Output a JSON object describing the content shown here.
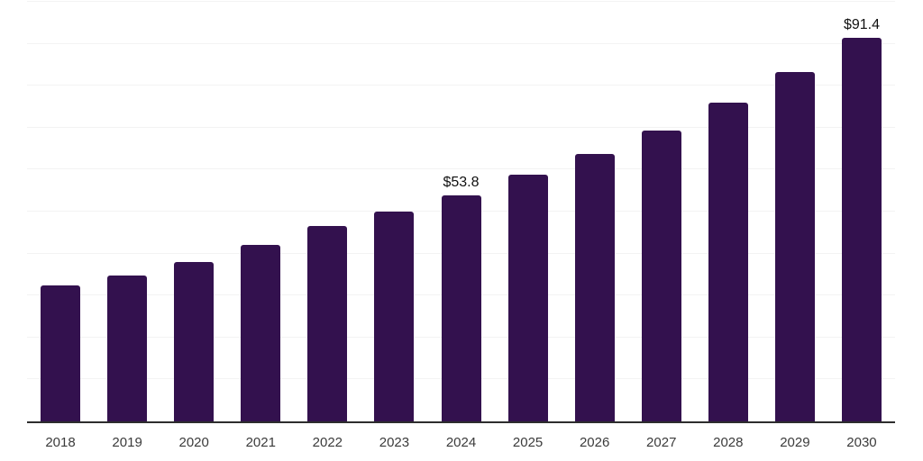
{
  "chart_data": {
    "type": "bar",
    "title": "",
    "xlabel": "",
    "ylabel": "",
    "categories": [
      "2018",
      "2019",
      "2020",
      "2021",
      "2022",
      "2023",
      "2024",
      "2025",
      "2026",
      "2027",
      "2028",
      "2029",
      "2030"
    ],
    "values": [
      32.4,
      34.8,
      37.9,
      42.0,
      46.5,
      50.0,
      53.8,
      58.8,
      63.7,
      69.4,
      76.0,
      83.3,
      91.4
    ],
    "data_labels": [
      {
        "category": "2024",
        "text": "$53.8"
      },
      {
        "category": "2030",
        "text": "$91.4"
      }
    ],
    "ylim": [
      0,
      100
    ],
    "gridline_interval": 10,
    "grid_visible": true,
    "legend_position": "none",
    "colors": {
      "bar": "#33114e",
      "axis_line": "#2d2d2d",
      "gridline": "#f3f3f3",
      "tick_label": "#3b3b3b",
      "value_label": "#111111",
      "background": "#ffffff"
    }
  }
}
